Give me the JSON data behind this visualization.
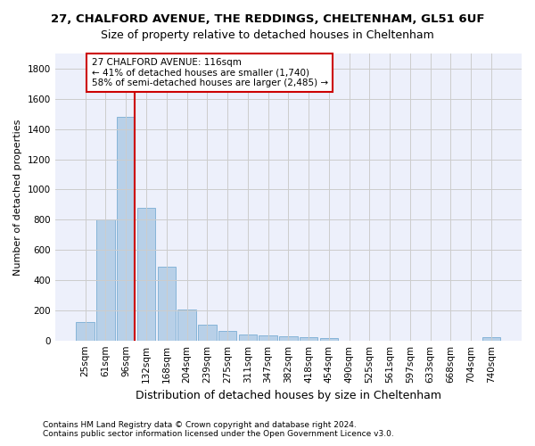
{
  "title1": "27, CHALFORD AVENUE, THE REDDINGS, CHELTENHAM, GL51 6UF",
  "title2": "Size of property relative to detached houses in Cheltenham",
  "xlabel": "Distribution of detached houses by size in Cheltenham",
  "ylabel": "Number of detached properties",
  "footnote1": "Contains HM Land Registry data © Crown copyright and database right 2024.",
  "footnote2": "Contains public sector information licensed under the Open Government Licence v3.0.",
  "categories": [
    "25sqm",
    "61sqm",
    "96sqm",
    "132sqm",
    "168sqm",
    "204sqm",
    "239sqm",
    "275sqm",
    "311sqm",
    "347sqm",
    "382sqm",
    "418sqm",
    "454sqm",
    "490sqm",
    "525sqm",
    "561sqm",
    "597sqm",
    "633sqm",
    "668sqm",
    "704sqm",
    "740sqm"
  ],
  "values": [
    125,
    800,
    1480,
    880,
    490,
    205,
    105,
    65,
    40,
    35,
    30,
    20,
    15,
    0,
    0,
    0,
    0,
    0,
    0,
    0,
    20
  ],
  "bar_color": "#b8d0e8",
  "bar_edge_color": "#7aadd4",
  "vline_color": "#cc0000",
  "annotation_text": "27 CHALFORD AVENUE: 116sqm\n← 41% of detached houses are smaller (1,740)\n58% of semi-detached houses are larger (2,485) →",
  "annotation_box_color": "white",
  "annotation_box_edge": "#cc0000",
  "ylim": [
    0,
    1900
  ],
  "yticks": [
    0,
    200,
    400,
    600,
    800,
    1000,
    1200,
    1400,
    1600,
    1800
  ],
  "background_color": "#edf0fb",
  "grid_color": "#cccccc",
  "title1_fontsize": 9.5,
  "title2_fontsize": 9,
  "xlabel_fontsize": 9,
  "ylabel_fontsize": 8,
  "tick_fontsize": 7.5,
  "footnote_fontsize": 6.5,
  "annot_fontsize": 7.5
}
